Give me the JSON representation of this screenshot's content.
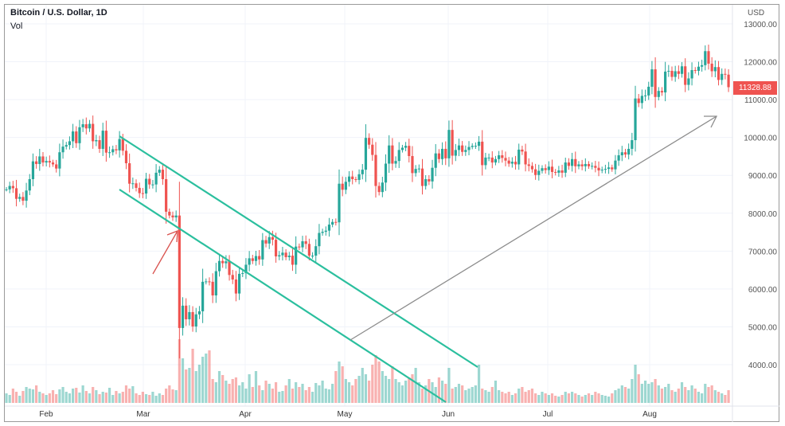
{
  "header": {
    "title": "Bitcoin / U.S. Dollar, 1D",
    "volume_label": "Vol",
    "currency": "USD",
    "last_price": "11328.88"
  },
  "colors": {
    "up": "#26a69a",
    "down": "#ef5350",
    "channel": "#2bbf9e",
    "trend_arrow": "#8c8c8c",
    "marker_arrow": "#d9534f",
    "grid": "#f0f3fa"
  },
  "chart_data": {
    "type": "candlestick",
    "title": "Bitcoin / U.S. Dollar, 1D",
    "ylabel": "USD",
    "ylim": [
      3000,
      13500
    ],
    "y_ticks": [
      "13000.00",
      "12000.00",
      "11000.00",
      "10000.00",
      "9000.00",
      "8000.00",
      "7000.00",
      "6000.00",
      "5000.00",
      "4000.00"
    ],
    "y_tick_values": [
      13000,
      12000,
      11000,
      10000,
      9000,
      8000,
      7000,
      6000,
      5000,
      4000
    ],
    "x_ticks": [
      "Feb",
      "Mar",
      "Apr",
      "May",
      "Jun",
      "Jul",
      "Aug"
    ],
    "grid": true,
    "months": [
      {
        "month": "2020-01",
        "first_day": 20,
        "close": [
          8630,
          8720,
          8660,
          8380,
          8430,
          8330,
          8600,
          8900,
          9370,
          9300,
          9500,
          9340
        ],
        "volume": [
          12,
          10,
          18,
          14,
          9,
          15,
          20,
          18,
          17,
          22,
          14,
          12
        ]
      },
      {
        "month": "2020-02",
        "first_day": 1,
        "close": [
          9380,
          9340,
          9290,
          9180,
          9610,
          9760,
          9800,
          9900,
          10160,
          9850,
          10270,
          10350,
          10240,
          10360,
          9900,
          9930,
          9700,
          10180,
          9600,
          9610,
          9690,
          9660,
          9960,
          9650,
          9320,
          8780,
          8790,
          8670,
          8530
        ],
        "volume": [
          10,
          12,
          16,
          11,
          17,
          20,
          14,
          12,
          18,
          19,
          13,
          22,
          15,
          12,
          20,
          16,
          11,
          14,
          13,
          19,
          10,
          15,
          12,
          14,
          22,
          18,
          21,
          12,
          10
        ]
      },
      {
        "month": "2020-03",
        "first_day": 1,
        "close": [
          8520,
          8910,
          8760,
          8760,
          9070,
          9150,
          8900,
          8040,
          7940,
          7890,
          7940,
          4970,
          5560,
          5200,
          5390,
          5010,
          5330,
          5410,
          6190,
          6200,
          6190,
          5830,
          6470,
          6740,
          6680,
          6730,
          6370,
          6250,
          5880,
          6400,
          6420
        ],
        "volume": [
          14,
          11,
          10,
          14,
          9,
          12,
          10,
          18,
          22,
          17,
          16,
          80,
          56,
          42,
          44,
          68,
          40,
          48,
          58,
          62,
          66,
          30,
          26,
          40,
          35,
          28,
          24,
          30,
          32,
          22,
          26
        ]
      },
      {
        "month": "2020-04",
        "first_day": 1,
        "close": [
          6640,
          6810,
          6740,
          6870,
          6780,
          7290,
          7200,
          7370,
          7300,
          6860,
          6890,
          6960,
          6840,
          6880,
          6640,
          7120,
          7100,
          7260,
          7190,
          6880,
          6880,
          7130,
          7480,
          7510,
          7540,
          7700,
          7770,
          7760,
          8780,
          8620
        ],
        "volume": [
          18,
          36,
          20,
          40,
          22,
          16,
          28,
          24,
          18,
          26,
          14,
          15,
          22,
          30,
          18,
          26,
          20,
          24,
          16,
          20,
          14,
          25,
          22,
          28,
          18,
          17,
          24,
          40,
          52,
          46
        ]
      },
      {
        "month": "2020-05",
        "first_day": 1,
        "close": [
          8830,
          8970,
          8900,
          8880,
          9030,
          9150,
          9990,
          9810,
          9540,
          8720,
          8560,
          8810,
          9310,
          9790,
          9310,
          9380,
          9670,
          9730,
          9780,
          9510,
          9060,
          9170,
          9180,
          8720,
          8900,
          8840,
          9200,
          9580,
          9430,
          9700,
          9450
        ],
        "volume": [
          30,
          26,
          22,
          30,
          34,
          44,
          36,
          28,
          48,
          60,
          52,
          40,
          34,
          30,
          46,
          30,
          26,
          22,
          28,
          32,
          36,
          44,
          26,
          18,
          22,
          30,
          26,
          20,
          32,
          28,
          24
        ]
      },
      {
        "month": "2020-06",
        "first_day": 1,
        "close": [
          10200,
          9520,
          9670,
          9790,
          9620,
          9670,
          9750,
          9780,
          9780,
          9890,
          9270,
          9470,
          9470,
          9340,
          9430,
          9530,
          9460,
          9390,
          9310,
          9360,
          9290,
          9680,
          9630,
          9290,
          9250,
          9160,
          9010,
          9120,
          9190,
          9140
        ],
        "volume": [
          44,
          18,
          20,
          24,
          22,
          16,
          18,
          20,
          22,
          48,
          18,
          16,
          14,
          20,
          28,
          16,
          14,
          12,
          14,
          10,
          12,
          18,
          20,
          14,
          16,
          18,
          12,
          10,
          14,
          12
        ]
      },
      {
        "month": "2020-07",
        "first_day": 1,
        "close": [
          9230,
          9090,
          9070,
          9130,
          9070,
          9340,
          9250,
          9430,
          9240,
          9290,
          9240,
          9300,
          9240,
          9250,
          9200,
          9130,
          9150,
          9170,
          9210,
          9160,
          9390,
          9530,
          9610,
          9550,
          9700,
          9930,
          11030,
          10910,
          11100,
          11110,
          11340
        ],
        "volume": [
          10,
          12,
          9,
          8,
          10,
          14,
          12,
          14,
          12,
          10,
          8,
          10,
          12,
          10,
          14,
          12,
          10,
          9,
          8,
          12,
          16,
          18,
          22,
          20,
          18,
          30,
          48,
          36,
          24,
          28,
          24
        ]
      },
      {
        "month": "2020-08",
        "first_day": 1,
        "close": [
          11800,
          11070,
          11230,
          11190,
          11740,
          11760,
          11600,
          11750,
          11680,
          11880,
          11390,
          11560,
          11780,
          11760,
          11870,
          11910,
          12280,
          11950,
          11750,
          11860,
          11520,
          11680,
          11660,
          11328.88
        ],
        "volume": [
          26,
          30,
          22,
          18,
          20,
          24,
          16,
          14,
          18,
          26,
          20,
          16,
          22,
          18,
          14,
          12,
          24,
          20,
          22,
          16,
          14,
          12,
          10,
          16
        ]
      }
    ],
    "drawings": [
      {
        "type": "channel-line",
        "label": "upper"
      },
      {
        "type": "channel-line",
        "label": "lower"
      },
      {
        "type": "arrow",
        "label": "trend"
      },
      {
        "type": "arrow",
        "label": "marker"
      }
    ]
  }
}
